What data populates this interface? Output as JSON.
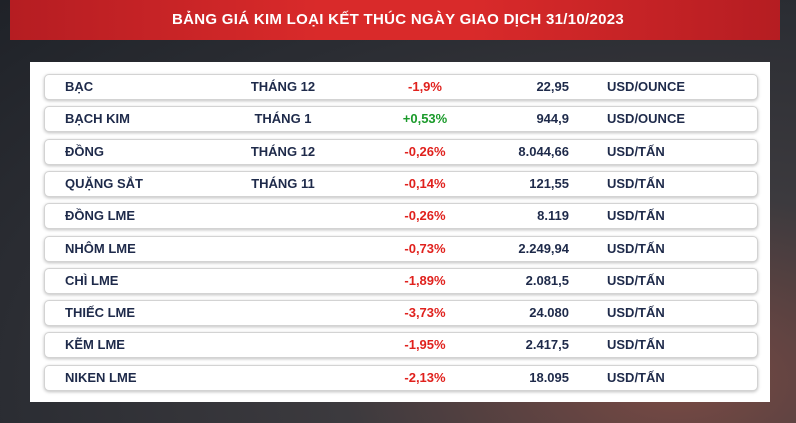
{
  "header": {
    "title": "BẢNG GIÁ KIM LOẠI KẾT THÚC NGÀY GIAO DỊCH 31/10/2023"
  },
  "table": {
    "positive_color": "#1a9a2a",
    "negative_color": "#e0211d",
    "rows": [
      {
        "name": "BẠC",
        "month": "THÁNG 12",
        "change": "-1,9%",
        "price": "22,95",
        "unit": "USD/OUNCE"
      },
      {
        "name": "BẠCH KIM",
        "month": "THÁNG 1",
        "change": "+0,53%",
        "price": "944,9",
        "unit": "USD/OUNCE"
      },
      {
        "name": "ĐỒNG",
        "month": "THÁNG 12",
        "change": "-0,26%",
        "price": "8.044,66",
        "unit": "USD/TẤN"
      },
      {
        "name": "QUẶNG SẮT",
        "month": "THÁNG 11",
        "change": "-0,14%",
        "price": "121,55",
        "unit": "USD/TẤN"
      },
      {
        "name": "ĐỒNG LME",
        "change": "-0,26%",
        "price": "8.119",
        "unit": "USD/TẤN"
      },
      {
        "name": "NHÔM LME",
        "change": "-0,73%",
        "price": "2.249,94",
        "unit": "USD/TẤN"
      },
      {
        "name": "CHÌ LME",
        "change": "-1,89%",
        "price": "2.081,5",
        "unit": "USD/TẤN"
      },
      {
        "name": "THIẾC LME",
        "change": "-3,73%",
        "price": "24.080",
        "unit": "USD/TẤN"
      },
      {
        "name": "KẼM LME",
        "change": "-1,95%",
        "price": "2.417,5",
        "unit": "USD/TẤN"
      },
      {
        "name": "NIKEN LME",
        "change": "-2,13%",
        "price": "18.095",
        "unit": "USD/TẤN"
      }
    ]
  }
}
